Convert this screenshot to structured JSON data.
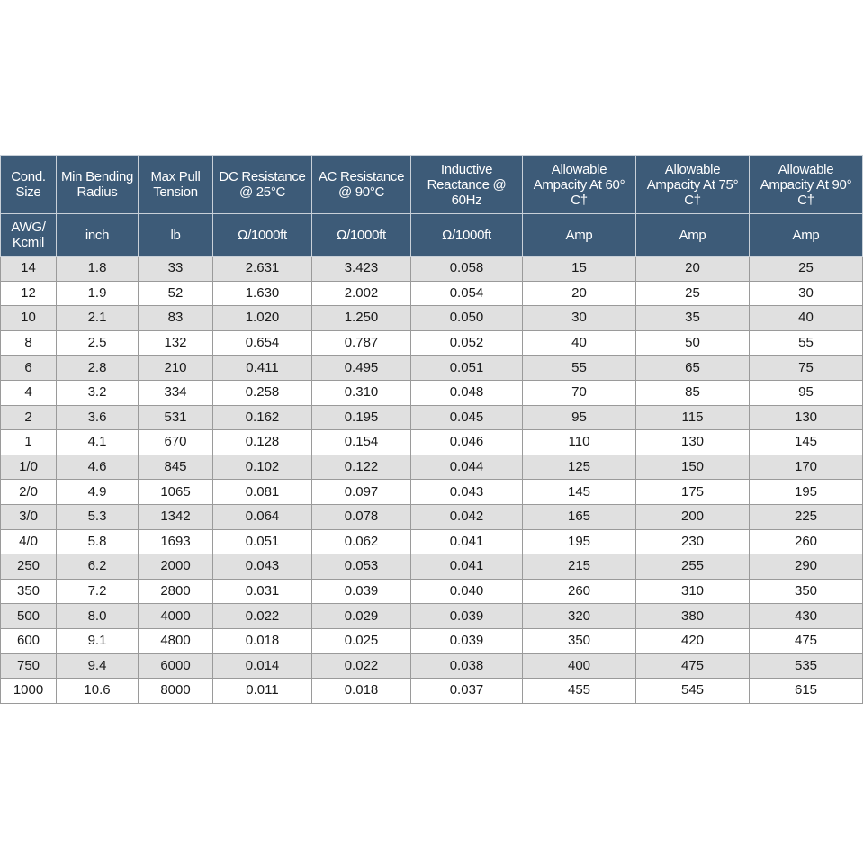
{
  "table": {
    "header_rows": [
      [
        "Cond. Size",
        "Min Bending Radius",
        "Max Pull Tension",
        "DC Resistance @ 25°C",
        "AC Resistance @ 90°C",
        "Inductive Reactance @ 60Hz",
        "Allowable Ampacity At 60° C†",
        "Allowable Ampacity At 75° C†",
        "Allowable Ampacity At 90° C†"
      ],
      [
        "AWG/ Kcmil",
        "inch",
        "lb",
        "Ω/1000ft",
        "Ω/1000ft",
        "Ω/1000ft",
        "Amp",
        "Amp",
        "Amp"
      ]
    ],
    "rows": [
      [
        "14",
        "1.8",
        "33",
        "2.631",
        "3.423",
        "0.058",
        "15",
        "20",
        "25"
      ],
      [
        "12",
        "1.9",
        "52",
        "1.630",
        "2.002",
        "0.054",
        "20",
        "25",
        "30"
      ],
      [
        "10",
        "2.1",
        "83",
        "1.020",
        "1.250",
        "0.050",
        "30",
        "35",
        "40"
      ],
      [
        "8",
        "2.5",
        "132",
        "0.654",
        "0.787",
        "0.052",
        "40",
        "50",
        "55"
      ],
      [
        "6",
        "2.8",
        "210",
        "0.411",
        "0.495",
        "0.051",
        "55",
        "65",
        "75"
      ],
      [
        "4",
        "3.2",
        "334",
        "0.258",
        "0.310",
        "0.048",
        "70",
        "85",
        "95"
      ],
      [
        "2",
        "3.6",
        "531",
        "0.162",
        "0.195",
        "0.045",
        "95",
        "115",
        "130"
      ],
      [
        "1",
        "4.1",
        "670",
        "0.128",
        "0.154",
        "0.046",
        "110",
        "130",
        "145"
      ],
      [
        "1/0",
        "4.6",
        "845",
        "0.102",
        "0.122",
        "0.044",
        "125",
        "150",
        "170"
      ],
      [
        "2/0",
        "4.9",
        "1065",
        "0.081",
        "0.097",
        "0.043",
        "145",
        "175",
        "195"
      ],
      [
        "3/0",
        "5.3",
        "1342",
        "0.064",
        "0.078",
        "0.042",
        "165",
        "200",
        "225"
      ],
      [
        "4/0",
        "5.8",
        "1693",
        "0.051",
        "0.062",
        "0.041",
        "195",
        "230",
        "260"
      ],
      [
        "250",
        "6.2",
        "2000",
        "0.043",
        "0.053",
        "0.041",
        "215",
        "255",
        "290"
      ],
      [
        "350",
        "7.2",
        "2800",
        "0.031",
        "0.039",
        "0.040",
        "260",
        "310",
        "350"
      ],
      [
        "500",
        "8.0",
        "4000",
        "0.022",
        "0.029",
        "0.039",
        "320",
        "380",
        "430"
      ],
      [
        "600",
        "9.1",
        "4800",
        "0.018",
        "0.025",
        "0.039",
        "350",
        "420",
        "475"
      ],
      [
        "750",
        "9.4",
        "6000",
        "0.014",
        "0.022",
        "0.038",
        "400",
        "475",
        "535"
      ],
      [
        "1000",
        "10.6",
        "8000",
        "0.011",
        "0.018",
        "0.037",
        "455",
        "545",
        "615"
      ]
    ]
  }
}
